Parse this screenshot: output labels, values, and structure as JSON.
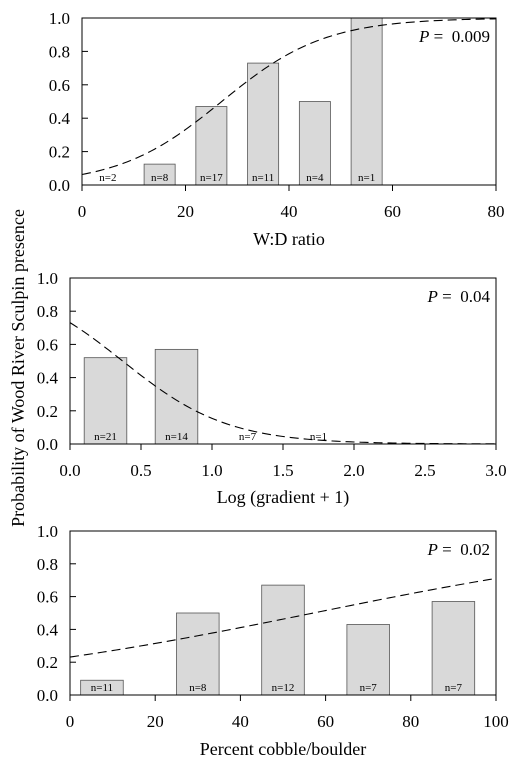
{
  "shared_ylabel": "Probability of Wood River Sculpin presence",
  "chart_data": [
    {
      "type": "bar",
      "xlabel": "W:D ratio",
      "xlim": [
        0,
        80
      ],
      "xticks": [
        "0",
        "20",
        "40",
        "60",
        "80"
      ],
      "ylim": [
        0,
        1.0
      ],
      "yticks": [
        "0.0",
        "0.2",
        "0.4",
        "0.6",
        "0.8",
        "1.0"
      ],
      "bars": [
        {
          "x0": 0,
          "x1": 0,
          "value": 0.0,
          "n": "n=2"
        },
        {
          "x0": 12,
          "x1": 18,
          "value": 0.125,
          "n": "n=8"
        },
        {
          "x0": 22,
          "x1": 28,
          "value": 0.47,
          "n": "n=17"
        },
        {
          "x0": 32,
          "x1": 38,
          "value": 0.73,
          "n": "n=11"
        },
        {
          "x0": 42,
          "x1": 48,
          "value": 0.5,
          "n": "n=4"
        },
        {
          "x0": 52,
          "x1": 58,
          "value": 1.0,
          "n": "n=1"
        }
      ],
      "n_label_x": [
        5,
        15,
        25,
        35,
        45,
        55
      ],
      "curve": {
        "b0": -2.7,
        "b1": 0.1
      },
      "p_label": "P",
      "p_value": " = 0.009"
    },
    {
      "type": "bar",
      "xlabel": "Log (gradient + 1)",
      "xlim": [
        0,
        3.0
      ],
      "xticks": [
        "0.0",
        "0.5",
        "1.0",
        "1.5",
        "2.0",
        "2.5",
        "3.0"
      ],
      "ylim": [
        0,
        1.0
      ],
      "yticks": [
        "0.0",
        "0.2",
        "0.4",
        "0.6",
        "0.8",
        "1.0"
      ],
      "bars": [
        {
          "x0": 0.1,
          "x1": 0.4,
          "value": 0.52,
          "n": "n=21"
        },
        {
          "x0": 0.6,
          "x1": 0.9,
          "value": 0.57,
          "n": "n=14"
        },
        {
          "x0": 1.1,
          "x1": 1.4,
          "value": 0.0,
          "n": "n=7"
        },
        {
          "x0": 1.6,
          "x1": 1.9,
          "value": 0.0,
          "n": "n=1"
        }
      ],
      "curve": {
        "b0": 1.0,
        "b1": -2.7
      },
      "p_label": "P",
      "p_value": " = 0.04"
    },
    {
      "type": "bar",
      "xlabel": "Percent cobble/boulder",
      "xlim": [
        0,
        100
      ],
      "xticks": [
        "0",
        "20",
        "40",
        "60",
        "80",
        "100"
      ],
      "ylim": [
        0,
        1.0
      ],
      "yticks": [
        "0.0",
        "0.2",
        "0.4",
        "0.6",
        "0.8",
        "1.0"
      ],
      "bars": [
        {
          "x0": 2.5,
          "x1": 12.5,
          "value": 0.09,
          "n": "n=11"
        },
        {
          "x0": 25,
          "x1": 35,
          "value": 0.5,
          "n": "n=8"
        },
        {
          "x0": 45,
          "x1": 55,
          "value": 0.67,
          "n": "n=12"
        },
        {
          "x0": 65,
          "x1": 75,
          "value": 0.43,
          "n": "n=7"
        },
        {
          "x0": 85,
          "x1": 95,
          "value": 0.57,
          "n": "n=7"
        }
      ],
      "curve": {
        "b0": -1.2,
        "b1": 0.021
      },
      "p_label": "P",
      "p_value": " = 0.02"
    }
  ]
}
